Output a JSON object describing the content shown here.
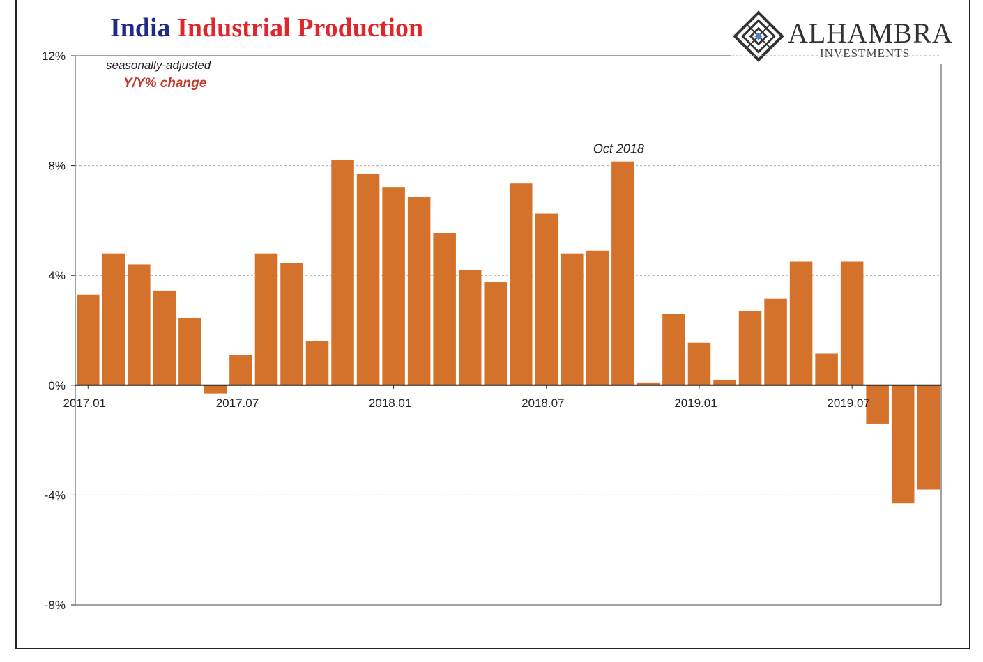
{
  "header": {
    "title_part1": "India",
    "title_part2": "Industrial Production",
    "logo_name": "ALHAMBRA",
    "logo_sub": "INVESTMENTS"
  },
  "notes": {
    "line1": "seasonally-adjusted",
    "line2": "Y/Y% change"
  },
  "colors": {
    "bar": "#d4722c",
    "title_blue": "#1f2a8a",
    "title_red": "#e0262a",
    "grid": "#aaaaaa"
  },
  "chart_data": {
    "type": "bar",
    "title": "India Industrial Production",
    "subtitle": "seasonally-adjusted Y/Y% change",
    "xlabel": "",
    "ylabel": "",
    "ylim": [
      -8,
      12
    ],
    "yticks": [
      12,
      8,
      4,
      0,
      -4,
      -8
    ],
    "ytick_labels": [
      "12%",
      "8%",
      "4%",
      "0%",
      "-4%",
      "-8%"
    ],
    "grid": true,
    "categories": [
      "2017.01",
      "2017.02",
      "2017.03",
      "2017.04",
      "2017.05",
      "2017.06",
      "2017.07",
      "2017.08",
      "2017.09",
      "2017.10",
      "2017.11",
      "2017.12",
      "2018.01",
      "2018.02",
      "2018.03",
      "2018.04",
      "2018.05",
      "2018.06",
      "2018.07",
      "2018.08",
      "2018.09",
      "2018.10",
      "2018.11",
      "2018.12",
      "2019.01",
      "2019.02",
      "2019.03",
      "2019.04",
      "2019.05",
      "2019.06",
      "2019.07",
      "2019.08",
      "2019.09",
      "2019.10"
    ],
    "values": [
      3.3,
      4.8,
      4.4,
      3.45,
      2.45,
      -0.3,
      1.1,
      4.8,
      4.45,
      1.6,
      8.2,
      7.7,
      7.2,
      6.85,
      5.55,
      4.2,
      3.75,
      7.35,
      6.25,
      4.8,
      4.9,
      8.15,
      0.1,
      2.6,
      1.55,
      0.2,
      2.7,
      3.15,
      4.5,
      1.15,
      4.5,
      -1.4,
      -4.3,
      -3.8
    ],
    "xtick_labels": [
      "2017.01",
      "2017.07",
      "2018.01",
      "2018.07",
      "2019.01",
      "2019.07"
    ],
    "xtick_indices": [
      0,
      6,
      12,
      18,
      24,
      30
    ],
    "annotations": [
      {
        "text": "Oct 2018",
        "index": 21
      }
    ]
  }
}
